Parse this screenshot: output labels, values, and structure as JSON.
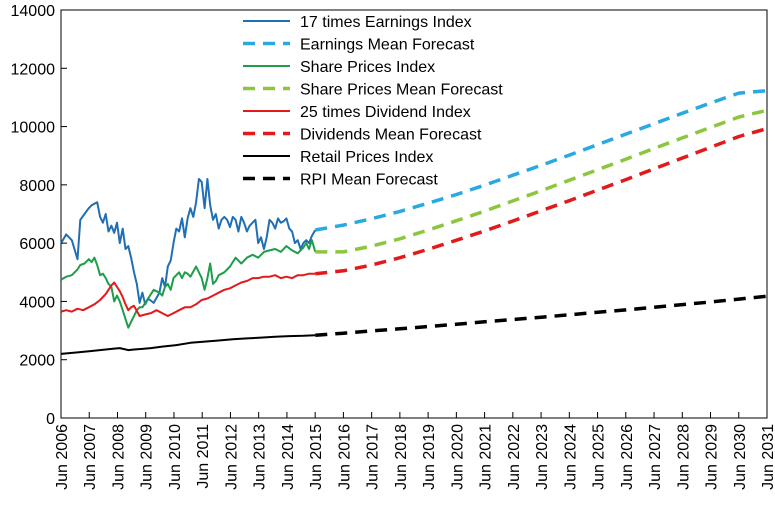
{
  "chart_data": {
    "type": "line",
    "title": "",
    "xlabel": "",
    "ylabel": "",
    "ylim": [
      0,
      14000
    ],
    "yticks": [
      0,
      2000,
      4000,
      6000,
      8000,
      10000,
      12000,
      14000
    ],
    "xlim": [
      2006.4167,
      2031.4167
    ],
    "xtick_labels": [
      "Jun 2006",
      "Jun 2007",
      "Jun 2008",
      "Jun 2009",
      "Jun 2010",
      "Jun 2011",
      "Jun 2012",
      "Jun 2013",
      "Jun 2014",
      "Jun 2015",
      "Jun 2016",
      "Jun 2017",
      "Jun 2018",
      "Jun 2019",
      "Jun 2020",
      "Jun 2021",
      "Jun 2022",
      "Jun 2023",
      "Jun 2024",
      "Jun 2025",
      "Jun 2026",
      "Jun 2027",
      "Jun 2028",
      "Jun 2029",
      "Jun 2030",
      "Jun 2031"
    ],
    "grid": false,
    "legend_position": "top-center",
    "series": [
      {
        "name": "17 times Earnings Index",
        "color": "#1f6fb4",
        "style": "solid",
        "x": [
          2006.42,
          2006.6,
          2006.8,
          2007.0,
          2007.1,
          2007.25,
          2007.4,
          2007.5,
          2007.6,
          2007.7,
          2007.8,
          2007.9,
          2008.0,
          2008.1,
          2008.2,
          2008.3,
          2008.4,
          2008.5,
          2008.6,
          2008.7,
          2008.8,
          2008.9,
          2009.0,
          2009.1,
          2009.2,
          2009.3,
          2009.4,
          2009.5,
          2009.7,
          2009.9,
          2010.0,
          2010.1,
          2010.2,
          2010.3,
          2010.4,
          2010.5,
          2010.6,
          2010.7,
          2010.8,
          2010.9,
          2011.0,
          2011.1,
          2011.2,
          2011.3,
          2011.4,
          2011.5,
          2011.6,
          2011.7,
          2011.8,
          2011.9,
          2012.0,
          2012.1,
          2012.2,
          2012.3,
          2012.4,
          2012.5,
          2012.6,
          2012.7,
          2012.8,
          2012.9,
          2013.0,
          2013.1,
          2013.2,
          2013.3,
          2013.4,
          2013.5,
          2013.6,
          2013.7,
          2013.8,
          2013.9,
          2014.0,
          2014.1,
          2014.2,
          2014.3,
          2014.4,
          2014.5,
          2014.6,
          2014.7,
          2014.8,
          2014.9,
          2015.0,
          2015.1,
          2015.2,
          2015.3,
          2015.42
        ],
        "y": [
          6000,
          6300,
          6100,
          5450,
          6800,
          7000,
          7200,
          7300,
          7350,
          7400,
          6900,
          6700,
          7000,
          6400,
          6600,
          6350,
          6700,
          6000,
          6500,
          5800,
          5900,
          5500,
          5000,
          4600,
          3950,
          4300,
          3900,
          4100,
          3950,
          4300,
          4800,
          4500,
          5200,
          5400,
          6000,
          6500,
          6400,
          6850,
          6200,
          6850,
          7200,
          6900,
          7400,
          8200,
          8100,
          7200,
          8200,
          7300,
          6800,
          7000,
          6500,
          6800,
          6900,
          6800,
          6550,
          6900,
          6800,
          6400,
          6900,
          6700,
          6400,
          6600,
          6700,
          6800,
          6000,
          6200,
          5800,
          6200,
          6800,
          6700,
          6500,
          6850,
          6700,
          6750,
          6850,
          6500,
          6400,
          6000,
          6100,
          5800,
          6000,
          6100,
          6000,
          6250,
          6450
        ]
      },
      {
        "name": "Earnings Mean Forecast",
        "color": "#29a9e0",
        "style": "dashed",
        "x": [
          2015.42,
          2016.42,
          2017.42,
          2018.42,
          2019.42,
          2020.42,
          2021.42,
          2022.42,
          2023.42,
          2024.42,
          2025.42,
          2026.42,
          2027.42,
          2028.42,
          2029.42,
          2030.42,
          2031.42
        ],
        "y": [
          6450,
          6620,
          6840,
          7090,
          7370,
          7670,
          7990,
          8330,
          8670,
          9020,
          9380,
          9740,
          10100,
          10460,
          10810,
          11150,
          11230
        ]
      },
      {
        "name": "Share Prices Index",
        "color": "#1e9e4a",
        "style": "solid",
        "x": [
          2006.42,
          2006.6,
          2006.8,
          2007.0,
          2007.1,
          2007.25,
          2007.4,
          2007.5,
          2007.6,
          2007.7,
          2007.8,
          2007.9,
          2008.0,
          2008.1,
          2008.2,
          2008.3,
          2008.4,
          2008.5,
          2008.6,
          2008.7,
          2008.8,
          2008.9,
          2009.0,
          2009.1,
          2009.2,
          2009.3,
          2009.5,
          2009.7,
          2009.9,
          2010.0,
          2010.1,
          2010.2,
          2010.3,
          2010.4,
          2010.5,
          2010.6,
          2010.7,
          2010.8,
          2010.9,
          2011.0,
          2011.2,
          2011.4,
          2011.5,
          2011.6,
          2011.7,
          2011.8,
          2011.9,
          2012.0,
          2012.2,
          2012.4,
          2012.6,
          2012.8,
          2013.0,
          2013.2,
          2013.4,
          2013.6,
          2013.8,
          2014.0,
          2014.2,
          2014.4,
          2014.6,
          2014.8,
          2015.0,
          2015.1,
          2015.2,
          2015.3,
          2015.42
        ],
        "y": [
          4750,
          4850,
          4900,
          5100,
          5250,
          5300,
          5450,
          5350,
          5500,
          5250,
          4900,
          4950,
          4800,
          4600,
          4500,
          4000,
          4200,
          4000,
          3700,
          3400,
          3100,
          3300,
          3500,
          3700,
          3800,
          3800,
          4100,
          4400,
          4300,
          4200,
          4500,
          4600,
          4400,
          4800,
          4900,
          5000,
          4800,
          5000,
          4950,
          4850,
          5200,
          4800,
          4400,
          4800,
          5300,
          4600,
          4700,
          4900,
          5000,
          5200,
          5500,
          5300,
          5500,
          5600,
          5500,
          5700,
          5750,
          5800,
          5700,
          5900,
          5750,
          5650,
          5850,
          6000,
          5800,
          6100,
          5700
        ]
      },
      {
        "name": "Share Prices Mean Forecast",
        "color": "#8cc63f",
        "style": "dashed",
        "x": [
          2015.42,
          2016.42,
          2017.42,
          2018.42,
          2019.42,
          2020.42,
          2021.42,
          2022.42,
          2023.42,
          2024.42,
          2025.42,
          2026.42,
          2027.42,
          2028.42,
          2029.42,
          2030.42,
          2031.42
        ],
        "y": [
          5700,
          5700,
          5900,
          6150,
          6450,
          6770,
          7100,
          7450,
          7800,
          8160,
          8520,
          8880,
          9250,
          9610,
          9970,
          10330,
          10560
        ]
      },
      {
        "name": "25 times Dividend Index",
        "color": "#e31a1c",
        "style": "solid",
        "x": [
          2006.42,
          2006.6,
          2006.8,
          2007.0,
          2007.2,
          2007.4,
          2007.6,
          2007.8,
          2008.0,
          2008.1,
          2008.2,
          2008.3,
          2008.4,
          2008.5,
          2008.6,
          2008.7,
          2008.8,
          2008.9,
          2009.0,
          2009.2,
          2009.4,
          2009.6,
          2009.8,
          2010.0,
          2010.2,
          2010.4,
          2010.6,
          2010.8,
          2011.0,
          2011.2,
          2011.4,
          2011.6,
          2011.8,
          2012.0,
          2012.2,
          2012.4,
          2012.6,
          2012.8,
          2013.0,
          2013.2,
          2013.4,
          2013.6,
          2013.8,
          2014.0,
          2014.2,
          2014.4,
          2014.6,
          2014.8,
          2015.0,
          2015.2,
          2015.42
        ],
        "y": [
          3650,
          3700,
          3650,
          3750,
          3700,
          3800,
          3900,
          4050,
          4250,
          4400,
          4550,
          4650,
          4500,
          4350,
          4150,
          3900,
          3700,
          3800,
          3850,
          3500,
          3550,
          3600,
          3700,
          3600,
          3500,
          3600,
          3700,
          3800,
          3800,
          3900,
          4050,
          4100,
          4200,
          4300,
          4400,
          4450,
          4550,
          4650,
          4700,
          4800,
          4800,
          4850,
          4850,
          4900,
          4800,
          4850,
          4800,
          4900,
          4900,
          4950,
          4950
        ]
      },
      {
        "name": "Dividends Mean Forecast",
        "color": "#e31a1c",
        "style": "dashed",
        "x": [
          2015.42,
          2016.42,
          2017.42,
          2018.42,
          2019.42,
          2020.42,
          2021.42,
          2022.42,
          2023.42,
          2024.42,
          2025.42,
          2026.42,
          2027.42,
          2028.42,
          2029.42,
          2030.42,
          2031.42
        ],
        "y": [
          4950,
          5050,
          5250,
          5500,
          5790,
          6100,
          6420,
          6760,
          7110,
          7460,
          7820,
          8180,
          8550,
          8920,
          9290,
          9660,
          9930
        ]
      },
      {
        "name": "Retail Prices Index",
        "color": "#000000",
        "style": "solid",
        "x": [
          2006.42,
          2007.0,
          2007.5,
          2008.0,
          2008.3,
          2008.5,
          2008.8,
          2009.0,
          2009.3,
          2009.6,
          2010.0,
          2010.5,
          2011.0,
          2011.5,
          2012.0,
          2012.5,
          2013.0,
          2013.5,
          2014.0,
          2014.5,
          2015.0,
          2015.42
        ],
        "y": [
          2200,
          2250,
          2300,
          2350,
          2380,
          2400,
          2330,
          2350,
          2370,
          2400,
          2450,
          2500,
          2580,
          2620,
          2660,
          2700,
          2730,
          2760,
          2790,
          2810,
          2820,
          2840
        ]
      },
      {
        "name": "RPI Mean Forecast",
        "color": "#000000",
        "style": "dashed",
        "x": [
          2015.42,
          2016.42,
          2017.42,
          2018.42,
          2019.42,
          2020.42,
          2021.42,
          2022.42,
          2023.42,
          2024.42,
          2025.42,
          2026.42,
          2027.42,
          2028.42,
          2029.42,
          2030.42,
          2031.42
        ],
        "y": [
          2840,
          2910,
          2990,
          3060,
          3140,
          3220,
          3300,
          3380,
          3460,
          3540,
          3630,
          3710,
          3800,
          3890,
          3980,
          4080,
          4180
        ]
      }
    ]
  }
}
